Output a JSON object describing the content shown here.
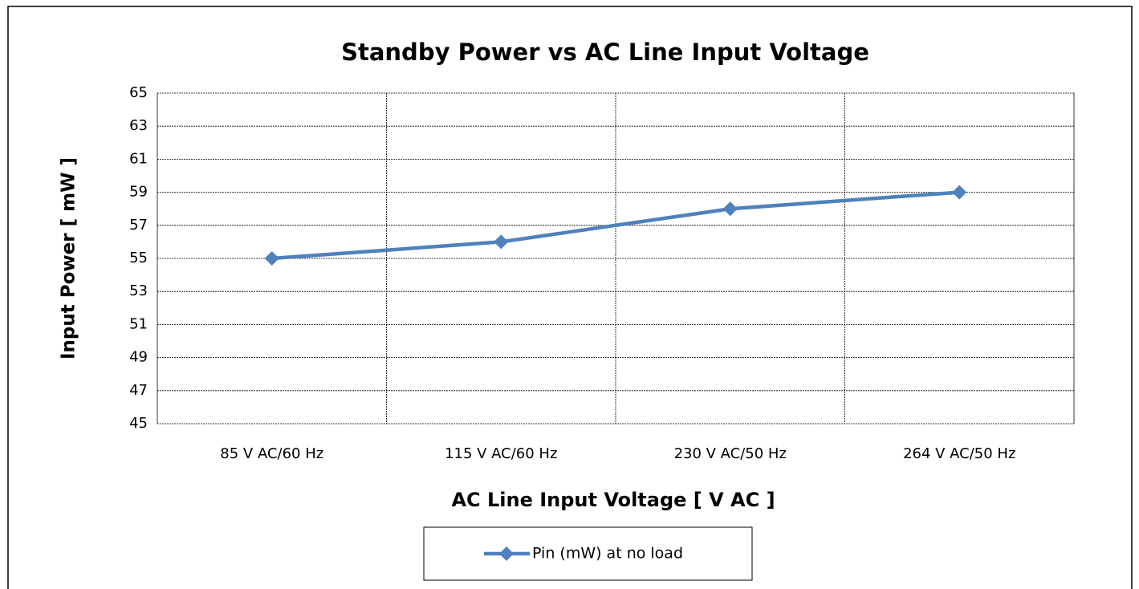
{
  "chart_data": {
    "type": "line",
    "title": "Standby Power  vs AC Line Input Voltage",
    "x_label": "AC Line Input Voltage [ V AC ]",
    "y_label": "Input Power [ mW ]",
    "categories": [
      "85 V AC/60 Hz",
      "115 V AC/60 Hz",
      "230 V AC/50 Hz",
      "264 V AC/50 Hz"
    ],
    "series": [
      {
        "name": "Pin (mW) at no load",
        "color": "#4f81bd",
        "values": [
          55,
          56,
          58,
          59
        ]
      }
    ],
    "ylim": [
      45,
      65
    ],
    "yticks": [
      45,
      47,
      49,
      51,
      53,
      55,
      57,
      59,
      61,
      63,
      65
    ],
    "grid": true,
    "legend": "bottom"
  }
}
